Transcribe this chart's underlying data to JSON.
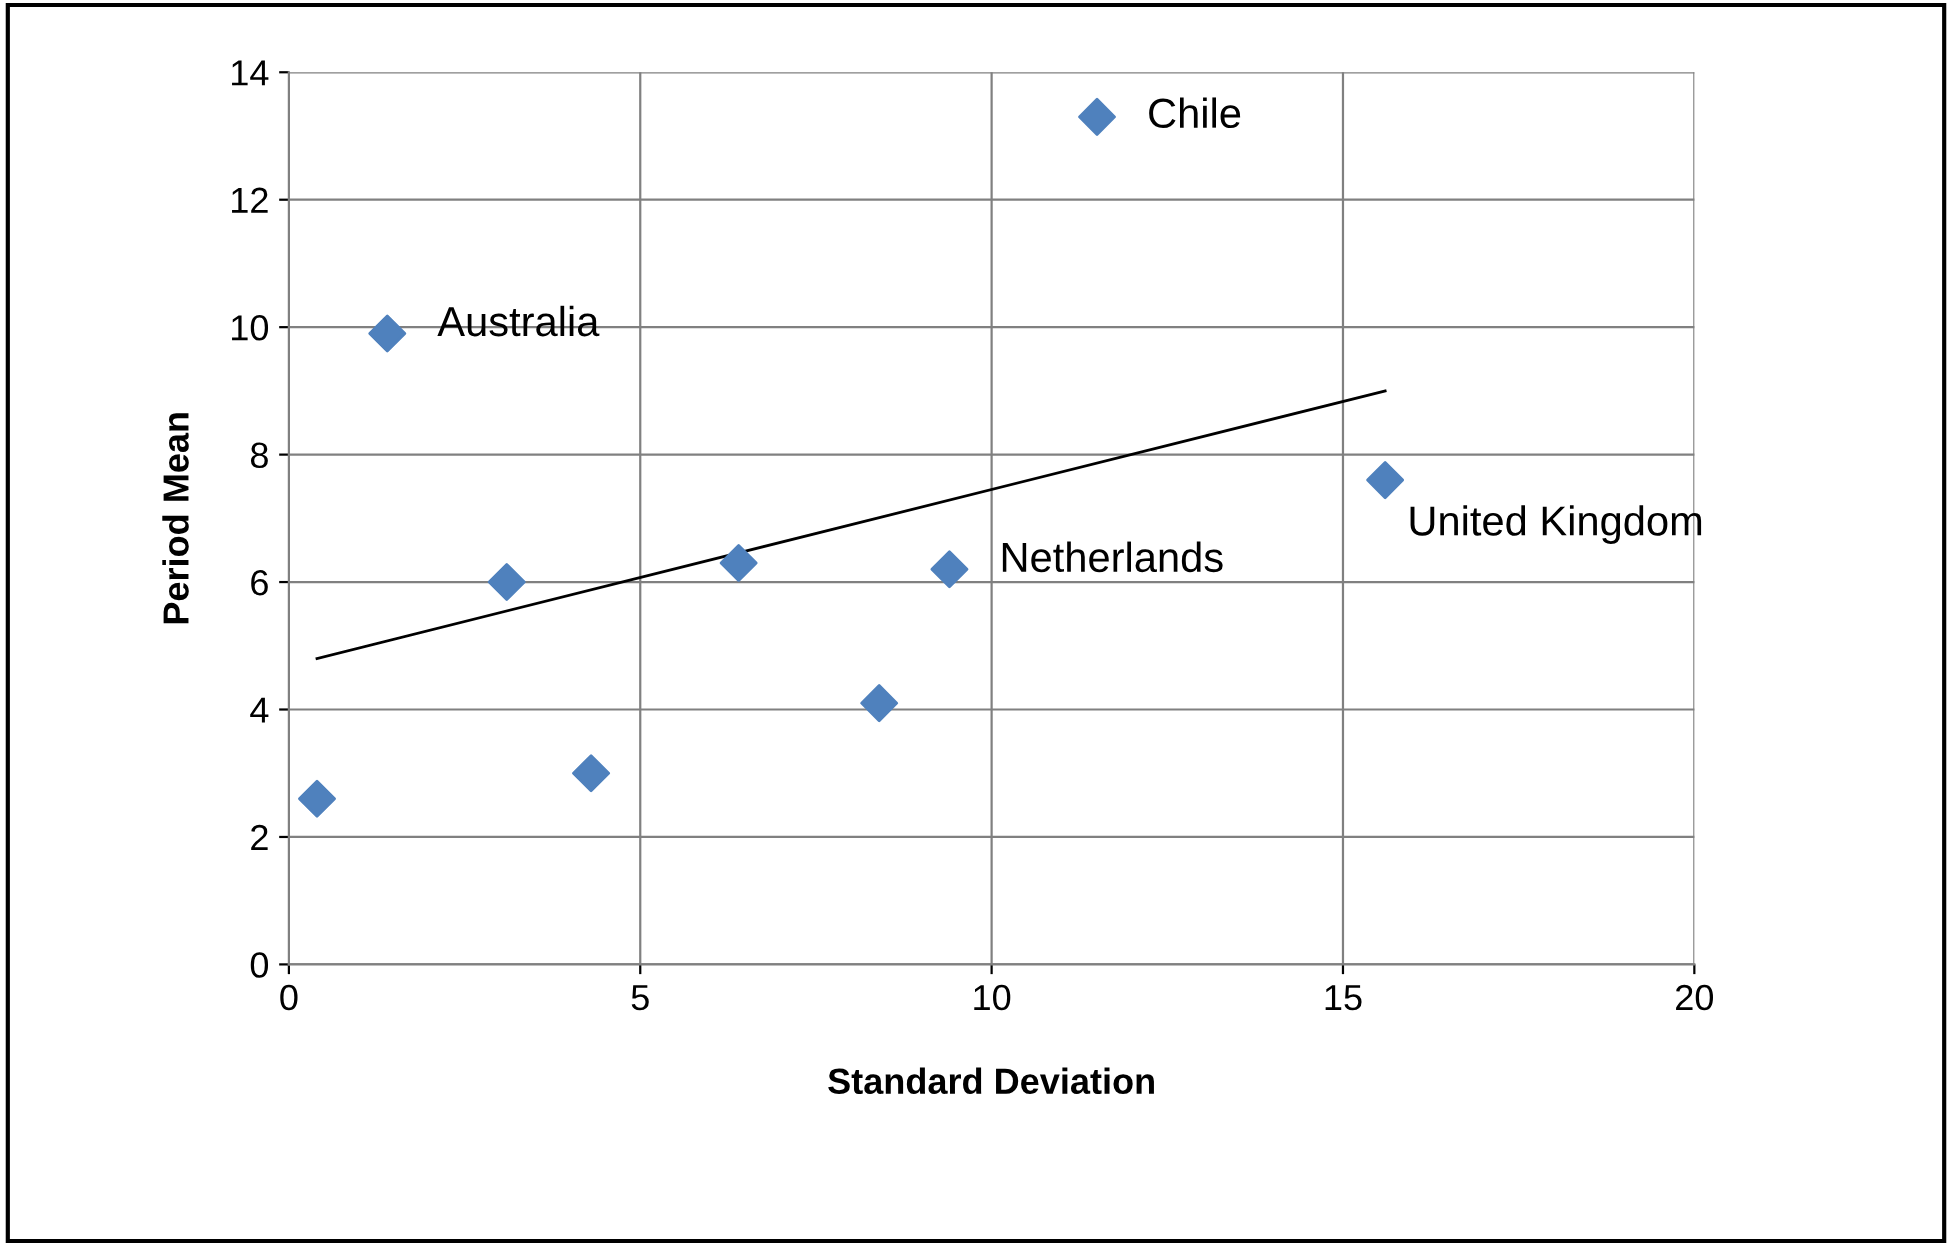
{
  "chart_data": {
    "type": "scatter",
    "xlabel": "Standard Deviation",
    "ylabel": "Period Mean",
    "series": [
      {
        "color": "#4f81bd",
        "marker": "diamond",
        "x": [
          0.4,
          1.4,
          3.1,
          4.3,
          6.4,
          8.4,
          9.4,
          11.5,
          15.6
        ],
        "values": [
          2.6,
          9.9,
          6.0,
          3.0,
          6.3,
          4.1,
          6.2,
          13.3,
          7.6
        ]
      },
      {
        "type": "line",
        "color": "#000000",
        "marker": "none",
        "x": [
          0.4,
          15.6
        ],
        "values": [
          4.8,
          9.0
        ]
      }
    ],
    "annotations": [
      {
        "text": "Australia",
        "x": 1.4,
        "y": 9.9
      },
      {
        "text": "Chile",
        "x": 11.5,
        "y": 13.3
      },
      {
        "text": "Netherlands",
        "x": 9.4,
        "y": 6.2
      },
      {
        "text": "United Kingdom",
        "x": 15.6,
        "y": 7.6
      }
    ],
    "xlim": [
      0,
      20
    ],
    "ylim": [
      0,
      14
    ],
    "xticks": [
      0,
      5,
      10,
      15,
      20
    ],
    "yticks": [
      0,
      2,
      4,
      6,
      8,
      10,
      12,
      14
    ],
    "grid": true,
    "legend": false
  }
}
